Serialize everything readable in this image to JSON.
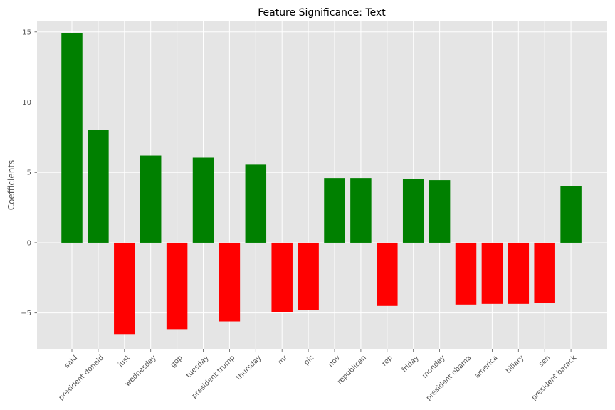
{
  "chart_data": {
    "type": "bar",
    "title": "Feature Significance: Text",
    "xlabel": "",
    "ylabel": "Coefficients",
    "ylim": [
      -7.6,
      15.8
    ],
    "yticks": [
      -5,
      0,
      5,
      10,
      15
    ],
    "ytick_labels": [
      "−5",
      "0",
      "5",
      "10",
      "15"
    ],
    "grid": true,
    "positive_color": "#008000",
    "negative_color": "#ff0000",
    "background_color": "#e5e5e5",
    "categories": [
      "said",
      "president donald",
      "just",
      "wednesday",
      "gop",
      "tuesday",
      "president trump",
      "thursday",
      "mr",
      "pic",
      "nov",
      "republican",
      "rep",
      "friday",
      "monday",
      "president obama",
      "america",
      "hillary",
      "sen",
      "president barack"
    ],
    "values": [
      14.9,
      8.05,
      -6.5,
      6.2,
      -6.15,
      6.05,
      -5.6,
      5.55,
      -4.95,
      -4.8,
      4.6,
      4.6,
      -4.5,
      4.55,
      4.45,
      -4.4,
      -4.35,
      -4.35,
      -4.3,
      4.0
    ]
  }
}
